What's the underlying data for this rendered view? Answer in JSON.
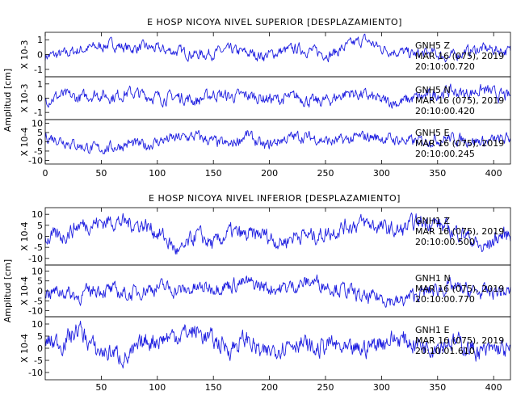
{
  "chart_data": [
    {
      "type": "line",
      "title": "E HOSP NICOYA NIVEL SUPERIOR [DESPLAZAMIENTO]",
      "ylabel": "Amplitud [cm]",
      "xlim": [
        0,
        415
      ],
      "xticks": [
        "0",
        "50",
        "100",
        "150",
        "200",
        "250",
        "300",
        "350",
        "400"
      ],
      "line_color": "#1f1fe0",
      "series": [
        {
          "name": "GNH5 Z",
          "scale_label": "X 10-3",
          "ylim": [
            -1.5,
            1.5
          ],
          "yticks": [
            "1",
            "0",
            "-1"
          ],
          "annotation": [
            "GNH5 Z",
            "MAR 16 (075), 2019",
            "20:10:00.720"
          ],
          "x": [
            0,
            15,
            30,
            45,
            60,
            75,
            90,
            105,
            120,
            135,
            150,
            165,
            180,
            195,
            210,
            225,
            240,
            255,
            270,
            285,
            300,
            315,
            330,
            345,
            360,
            375,
            390,
            405,
            415
          ],
          "values": [
            -0.1,
            0.0,
            0.3,
            0.5,
            0.7,
            0.4,
            0.5,
            0.3,
            0.2,
            0.0,
            0.1,
            0.3,
            0.1,
            -0.1,
            0.2,
            0.4,
            0.2,
            0.0,
            0.6,
            1.0,
            0.4,
            0.2,
            0.0,
            0.1,
            -0.2,
            0.2,
            0.4,
            0.3,
            0.2
          ],
          "noise": 0.6
        },
        {
          "name": "GNH5 N",
          "scale_label": "X 10-3",
          "ylim": [
            -1.5,
            1.5
          ],
          "yticks": [
            "1",
            "0",
            "-1"
          ],
          "annotation": [
            "GNH5 N",
            "MAR 16 (075), 2019",
            "20:10:00.420"
          ],
          "x": [
            0,
            15,
            30,
            45,
            60,
            75,
            90,
            105,
            120,
            135,
            150,
            165,
            180,
            195,
            210,
            225,
            240,
            255,
            270,
            285,
            300,
            315,
            330,
            345,
            360,
            375,
            390,
            405,
            415
          ],
          "values": [
            -0.1,
            0.2,
            0.0,
            0.3,
            0.1,
            0.4,
            0.2,
            0.0,
            0.1,
            -0.2,
            0.3,
            0.1,
            0.2,
            0.0,
            -0.1,
            0.1,
            -0.3,
            -0.1,
            0.4,
            0.2,
            -0.2,
            -0.3,
            0.0,
            0.2,
            0.5,
            0.3,
            0.6,
            0.2,
            0.1
          ],
          "noise": 0.7
        },
        {
          "name": "GNH5 E",
          "scale_label": "X 10-4",
          "ylim": [
            -12,
            12
          ],
          "yticks": [
            "10",
            "5",
            "0",
            "-5",
            "-10"
          ],
          "annotation": [
            "GNH5 E",
            "MAR 16 (075), 2019",
            "20:10:00.245"
          ],
          "x": [
            0,
            15,
            30,
            45,
            60,
            75,
            90,
            105,
            120,
            135,
            150,
            165,
            180,
            195,
            210,
            225,
            240,
            255,
            270,
            285,
            300,
            315,
            330,
            345,
            360,
            375,
            390,
            405,
            415
          ],
          "values": [
            3,
            1,
            -2,
            -4,
            -3,
            -1,
            -2,
            1,
            2,
            3,
            0,
            -2,
            4,
            -3,
            1,
            3,
            2,
            0,
            1,
            3,
            2,
            1,
            0,
            1,
            2,
            1,
            0,
            1,
            2
          ],
          "noise": 5
        }
      ]
    },
    {
      "type": "line",
      "title": "E HOSP NICOYA NIVEL INFERIOR [DESPLAZAMIENTO]",
      "ylabel": "Amplitud [cm]",
      "xlim": [
        0,
        415
      ],
      "xticks": [
        "50",
        "100",
        "150",
        "200",
        "250",
        "300",
        "350",
        "400"
      ],
      "line_color": "#1f1fe0",
      "series": [
        {
          "name": "GNH1 Z",
          "scale_label": "X 10-4",
          "ylim": [
            -13,
            13
          ],
          "yticks": [
            "10",
            "5",
            "0",
            "-5",
            "-10"
          ],
          "annotation": [
            "GNH1 Z",
            "MAR 16 (075), 2019",
            "20:10:00.500"
          ],
          "x": [
            0,
            15,
            30,
            45,
            60,
            75,
            90,
            105,
            120,
            135,
            150,
            165,
            180,
            195,
            210,
            225,
            240,
            255,
            270,
            285,
            300,
            315,
            330,
            345,
            360,
            375,
            390,
            405,
            415
          ],
          "values": [
            -1,
            0,
            5,
            6,
            7,
            6,
            5,
            0,
            -8,
            1,
            -4,
            2,
            0,
            1,
            -3,
            1,
            0,
            2,
            5,
            6,
            4,
            2,
            6,
            7,
            3,
            1,
            -6,
            0,
            1
          ],
          "noise": 6
        },
        {
          "name": "GNH1 N",
          "scale_label": "X 10-4",
          "ylim": [
            -13,
            13
          ],
          "yticks": [
            "10",
            "5",
            "0",
            "-5",
            "-10"
          ],
          "annotation": [
            "GNH1 N",
            "MAR 16 (075), 2019",
            "20:10:00.770"
          ],
          "x": [
            0,
            15,
            30,
            45,
            60,
            75,
            90,
            105,
            120,
            135,
            150,
            165,
            180,
            195,
            210,
            225,
            240,
            255,
            270,
            285,
            300,
            315,
            330,
            345,
            360,
            375,
            390,
            405,
            415
          ],
          "values": [
            -1,
            0,
            -3,
            1,
            0,
            -2,
            1,
            2,
            0,
            1,
            2,
            3,
            4,
            2,
            1,
            3,
            5,
            2,
            0,
            -4,
            -3,
            -6,
            -2,
            0,
            2,
            0,
            -1,
            0,
            -1
          ],
          "noise": 6
        },
        {
          "name": "GNH1 E",
          "scale_label": "X 10-4",
          "ylim": [
            -13,
            13
          ],
          "yticks": [
            "10",
            "5",
            "0",
            "-5",
            "-10"
          ],
          "annotation": [
            "GNH1 E",
            "MAR 16 (075), 2019",
            "20:10:01.610"
          ],
          "x": [
            0,
            15,
            30,
            45,
            60,
            75,
            90,
            105,
            120,
            135,
            150,
            165,
            180,
            195,
            210,
            225,
            240,
            255,
            270,
            285,
            300,
            315,
            330,
            345,
            360,
            375,
            390,
            405,
            415
          ],
          "values": [
            3,
            2,
            8,
            -1,
            -2,
            -4,
            3,
            4,
            6,
            7,
            3,
            0,
            4,
            -3,
            1,
            3,
            -1,
            2,
            -2,
            0,
            3,
            4,
            2,
            1,
            3,
            1,
            -2,
            0,
            -2
          ],
          "noise": 6.5
        }
      ]
    }
  ]
}
